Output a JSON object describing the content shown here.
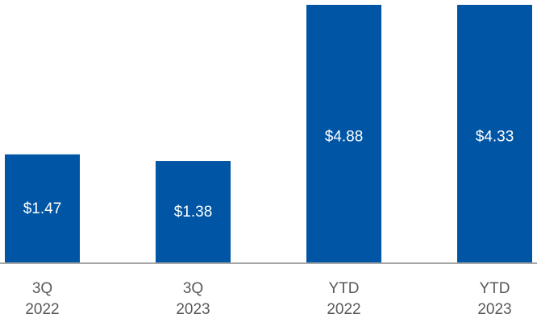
{
  "chart_data": {
    "type": "bar",
    "categories": [
      [
        "3Q",
        "2022"
      ],
      [
        "3Q",
        "2023"
      ],
      [
        "YTD",
        "2022"
      ],
      [
        "YTD",
        "2023"
      ]
    ],
    "values": [
      1.47,
      1.38,
      4.88,
      4.33
    ],
    "data_labels": [
      "$1.47",
      "$1.38",
      "$4.88",
      "$4.33"
    ],
    "title": "",
    "xlabel": "",
    "ylabel": "",
    "grid": false,
    "legend": "none",
    "colors": {
      "bar": "#0055A4",
      "axis": "#A6A6A6",
      "label_text": "#FFFFFF",
      "category_text": "#595959"
    }
  }
}
